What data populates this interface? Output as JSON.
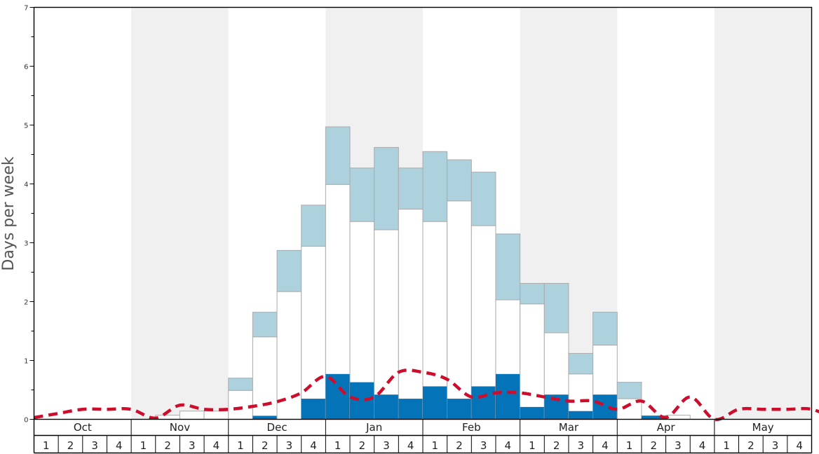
{
  "chart_data": {
    "type": "bar",
    "ylabel": "Days per week",
    "ylim": [
      0,
      7
    ],
    "y_ticks": [
      "0",
      "1",
      "2",
      "3",
      "4",
      "5",
      "6",
      "7"
    ],
    "months": [
      "Oct",
      "Nov",
      "Dec",
      "Jan",
      "Feb",
      "Mar",
      "Apr",
      "May"
    ],
    "week_labels": [
      "1",
      "2",
      "3",
      "4"
    ],
    "shaded_months": [
      "Nov",
      "Jan",
      "Mar",
      "May"
    ],
    "colors": {
      "top_segment": "#add2de",
      "middle_segment": "#ffffff",
      "bottom_segment": "#0573b7",
      "average_line": "#cc0e2c",
      "shade": "#f0f0f0",
      "bar_border": "#aaaaaa"
    },
    "series": [
      {
        "values": [
          0,
          0,
          0,
          0,
          0,
          0,
          0,
          0,
          0,
          0.06,
          0,
          0.35,
          0.77,
          0.63,
          0.42,
          0.35,
          0.56,
          0.35,
          0.56,
          0.77,
          0.21,
          0.42,
          0.14,
          0.42,
          0,
          0.06,
          0,
          0,
          0,
          0,
          0,
          0
        ]
      },
      {
        "values": [
          0,
          0,
          0,
          0,
          0,
          0.07,
          0.14,
          0.14,
          0.49,
          1.4,
          2.17,
          2.94,
          3.99,
          3.36,
          3.22,
          3.57,
          3.36,
          3.71,
          3.29,
          2.03,
          1.96,
          1.47,
          0.77,
          1.26,
          0.35,
          0.06,
          0.07,
          0,
          0,
          0,
          0,
          0
        ]
      },
      {
        "values": [
          0,
          0,
          0,
          0,
          0,
          0.07,
          0.14,
          0.14,
          0.7,
          1.82,
          2.87,
          3.64,
          4.97,
          4.27,
          4.62,
          4.27,
          4.55,
          4.41,
          4.2,
          3.15,
          2.31,
          2.31,
          1.12,
          1.82,
          0.63,
          0.06,
          0.07,
          0,
          0,
          0,
          0,
          0
        ]
      }
    ],
    "average_line": [
      0.03,
      0.1,
      0.17,
      0.17,
      0.17,
      0.02,
      0.24,
      0.17,
      0.17,
      0.22,
      0.3,
      0.45,
      0.73,
      0.38,
      0.38,
      0.8,
      0.8,
      0.68,
      0.38,
      0.45,
      0.45,
      0.38,
      0.31,
      0.31,
      0.17,
      0.31,
      0.03,
      0.38,
      0,
      0.17,
      0.17,
      0.17,
      0.17,
      0
    ]
  }
}
